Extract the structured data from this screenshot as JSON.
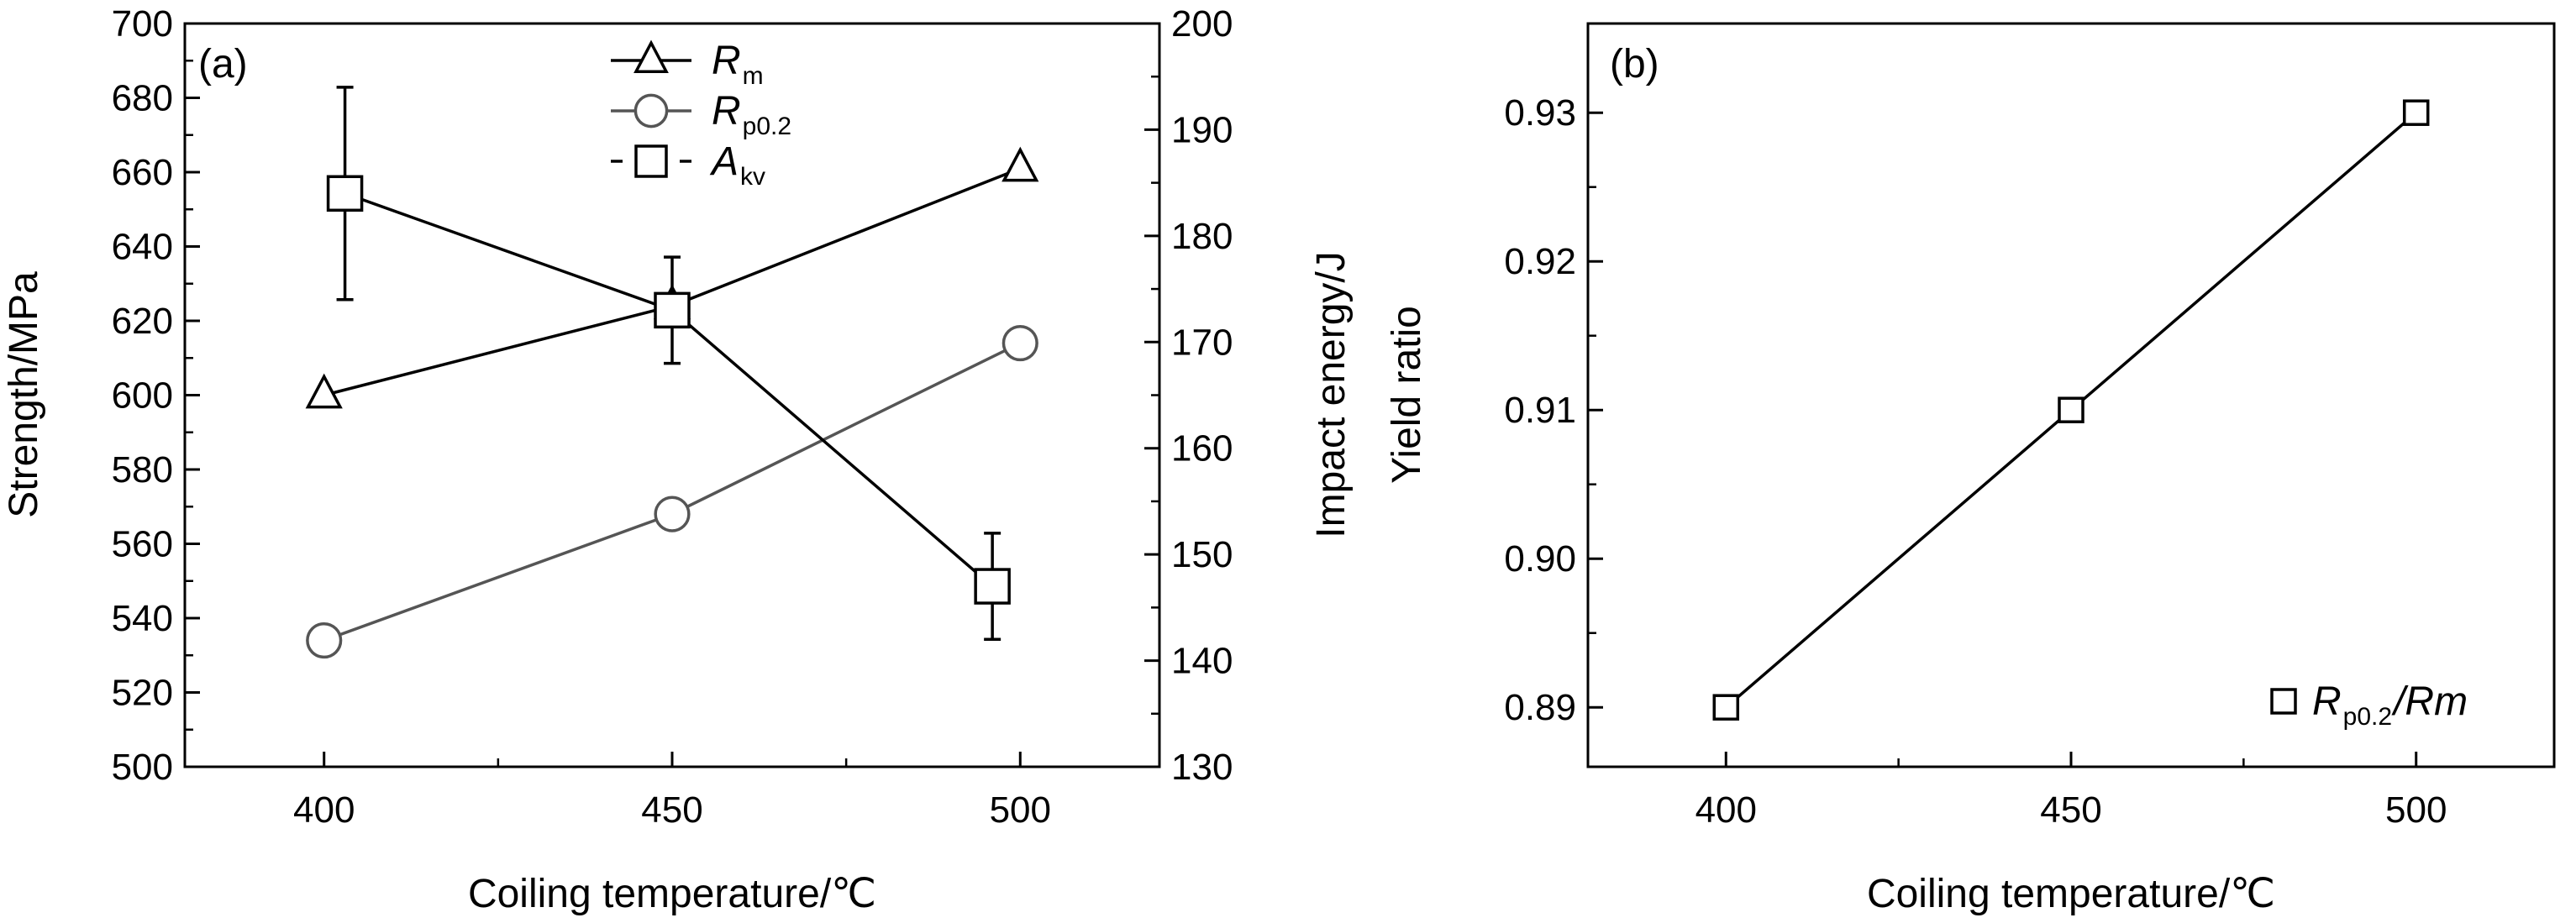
{
  "chart_data": [
    {
      "panel": "(a)",
      "type": "line",
      "xlabel": "Coiling temperature/℃",
      "ylabel": "Strength/MPa",
      "ylabel_right": "Impact energy/J",
      "x_ticks": [
        "400",
        "450",
        "500"
      ],
      "xlim": [
        380,
        520
      ],
      "ylim": [
        500,
        700
      ],
      "ylim_right": [
        130,
        200
      ],
      "y_ticks": [
        "500",
        "520",
        "540",
        "560",
        "580",
        "600",
        "620",
        "640",
        "660",
        "680",
        "700"
      ],
      "y_ticks_right": [
        "130",
        "140",
        "150",
        "160",
        "170",
        "180",
        "190",
        "200"
      ],
      "legend_position": "top-center",
      "series": [
        {
          "name": "Rm",
          "name_main": "R",
          "name_sub": "m",
          "axis": "left",
          "marker": "triangle",
          "color": "#000000",
          "x": [
            400,
            450,
            500
          ],
          "y": [
            600,
            624,
            661
          ]
        },
        {
          "name": "Rp0.2",
          "name_main": "R",
          "name_sub": "p0.2",
          "axis": "left",
          "marker": "circle",
          "color": "#555555",
          "x": [
            400,
            450,
            500
          ],
          "y": [
            534,
            568,
            614
          ]
        },
        {
          "name": "Akv",
          "name_main": "A",
          "name_sub": "kv",
          "axis": "right",
          "marker": "square",
          "color": "#000000",
          "x": [
            403,
            450,
            496
          ],
          "y": [
            184,
            173,
            147
          ],
          "error": [
            10,
            5,
            5
          ]
        }
      ]
    },
    {
      "panel": "(b)",
      "type": "line",
      "xlabel": "Coiling temperature/℃",
      "ylabel": "Yield ratio",
      "x_ticks": [
        "400",
        "450",
        "500"
      ],
      "xlim": [
        380,
        520
      ],
      "ylim": [
        0.886,
        0.936
      ],
      "y_ticks": [
        "0.89",
        "0.90",
        "0.91",
        "0.92",
        "0.93"
      ],
      "legend_position": "bottom-right",
      "series": [
        {
          "name": "Rp0.2/Rm",
          "name_main": "R",
          "name_sub": "p0.2",
          "name_tail": "/Rm",
          "marker": "square",
          "color": "#000000",
          "x": [
            400,
            450,
            500
          ],
          "y": [
            0.89,
            0.91,
            0.93
          ]
        }
      ]
    }
  ]
}
